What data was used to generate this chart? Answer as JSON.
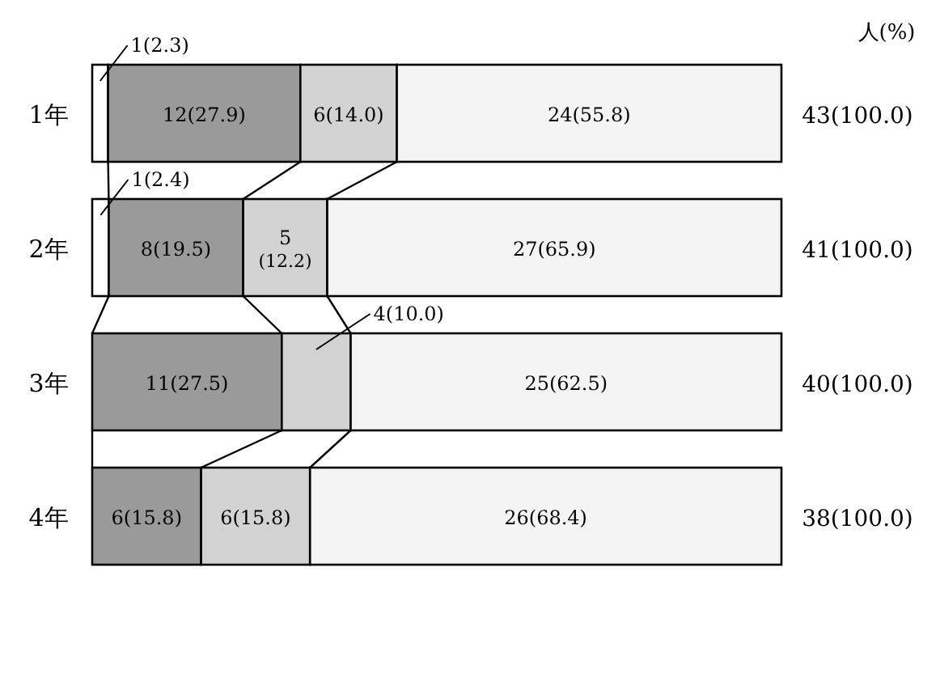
{
  "chart_data": {
    "type": "bar",
    "orientation": "horizontal",
    "stacked": true,
    "categories": [
      "1年",
      "2年",
      "3年",
      "4年"
    ],
    "series": [
      {
        "color": "#ffffff",
        "values": [
          2.3,
          2.4,
          null,
          null
        ],
        "value_labels": [
          "1(2.3)",
          "1(2.4)",
          null,
          null
        ]
      },
      {
        "color": "#9a9a9a",
        "values": [
          27.9,
          19.5,
          27.5,
          15.8
        ],
        "value_labels": [
          "12(27.9)",
          "8(19.5)",
          "11(27.5)",
          "6(15.8)"
        ]
      },
      {
        "color": "#d2d2d2",
        "values": [
          14.0,
          12.2,
          10.0,
          15.8
        ],
        "value_labels": [
          "6(14.0)",
          "5(12.2)",
          "4(10.0)",
          "6(15.8)"
        ]
      },
      {
        "color": "#f4f4f4",
        "values": [
          55.8,
          65.9,
          62.5,
          68.4
        ],
        "value_labels": [
          "24(55.8)",
          "27(65.9)",
          "25(62.5)",
          "26(68.4)"
        ]
      }
    ],
    "totals": [
      "43(100.0)",
      "41(100.0)",
      "40(100.0)",
      "38(100.0)"
    ],
    "annotations": [
      "人(%)"
    ]
  }
}
